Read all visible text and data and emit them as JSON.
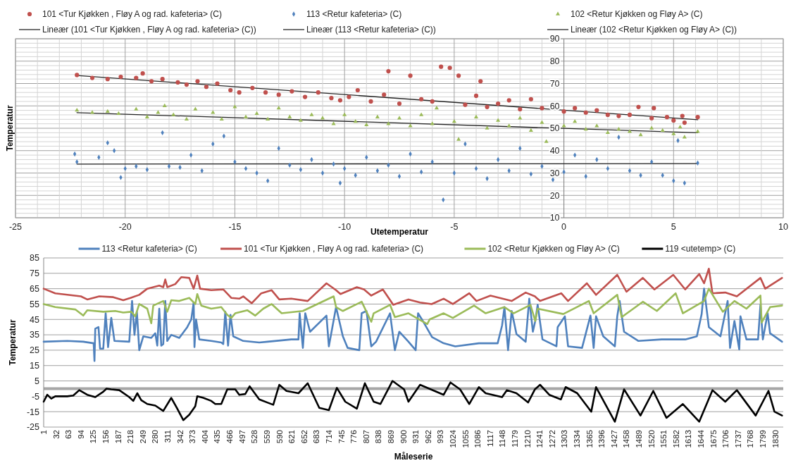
{
  "chart_data": [
    {
      "type": "scatter",
      "xlabel": "Utetemperatur",
      "ylabel": "Temperatur",
      "xlim": [
        -25,
        10
      ],
      "ylim": [
        10,
        90
      ],
      "grid": true,
      "legend": "top",
      "xticks": [
        -25,
        {
          "value": -24,
          "label": null
        },
        {
          "value": -23,
          "label": null
        },
        {
          "value": -22,
          "label": null
        },
        {
          "value": -21,
          "label": null
        },
        -20,
        {
          "value": -19,
          "label": null
        },
        {
          "value": -18,
          "label": null
        },
        {
          "value": -17,
          "label": null
        },
        {
          "value": -16,
          "label": null
        },
        -15,
        {
          "value": -14,
          "label": null
        },
        {
          "value": -13,
          "label": null
        },
        {
          "value": -12,
          "label": null
        },
        {
          "value": -11,
          "label": null
        },
        -10,
        {
          "value": -9,
          "label": null
        },
        {
          "value": -8,
          "label": null
        },
        {
          "value": -7,
          "label": null
        },
        {
          "value": -6,
          "label": null
        },
        -5,
        {
          "value": -4,
          "label": null
        },
        {
          "value": -3,
          "label": null
        },
        {
          "value": -2,
          "label": null
        },
        {
          "value": -1,
          "label": null
        },
        0,
        {
          "value": 1,
          "label": null
        },
        {
          "value": 2,
          "label": null
        },
        {
          "value": 3,
          "label": null
        },
        {
          "value": 4,
          "label": null
        },
        5,
        {
          "value": 6,
          "label": null
        },
        {
          "value": 7,
          "label": null
        },
        {
          "value": 8,
          "label": null
        },
        {
          "value": 9,
          "label": null
        },
        10
      ],
      "yticks": [
        10,
        {
          "value": 12,
          "label": null
        },
        {
          "value": 14,
          "label": null
        },
        {
          "value": 16,
          "label": null
        },
        {
          "value": 18,
          "label": null
        },
        20,
        {
          "value": 22,
          "label": null
        },
        {
          "value": 24,
          "label": null
        },
        {
          "value": 26,
          "label": null
        },
        {
          "value": 28,
          "label": null
        },
        30,
        {
          "value": 32,
          "label": null
        },
        {
          "value": 34,
          "label": null
        },
        {
          "value": 36,
          "label": null
        },
        {
          "value": 38,
          "label": null
        },
        40,
        {
          "value": 42,
          "label": null
        },
        {
          "value": 44,
          "label": null
        },
        {
          "value": 46,
          "label": null
        },
        {
          "value": 48,
          "label": null
        },
        50,
        {
          "value": 52,
          "label": null
        },
        {
          "value": 54,
          "label": null
        },
        {
          "value": 56,
          "label": null
        },
        {
          "value": 58,
          "label": null
        },
        60,
        {
          "value": 62,
          "label": null
        },
        {
          "value": 64,
          "label": null
        },
        {
          "value": 66,
          "label": null
        },
        {
          "value": 68,
          "label": null
        },
        70,
        {
          "value": 72,
          "label": null
        },
        {
          "value": 74,
          "label": null
        },
        {
          "value": 76,
          "label": null
        },
        {
          "value": 78,
          "label": null
        },
        80,
        {
          "value": 82,
          "label": null
        },
        {
          "value": 84,
          "label": null
        },
        {
          "value": 86,
          "label": null
        },
        {
          "value": 88,
          "label": null
        },
        90
      ],
      "series": [
        {
          "name": "101 <Tur Kjøkken , Fløy A og rad. kafeteria> (C)",
          "type": "scatter",
          "marker": "circle",
          "color": "#c0504d",
          "x": [
            -22.2,
            -21.5,
            -20.8,
            -20.2,
            -19.5,
            -19.2,
            -18.8,
            -18.3,
            -17.6,
            -17.2,
            -16.7,
            -16.3,
            -15.8,
            -15.2,
            -14.8,
            -14.2,
            -13.6,
            -13,
            -12.4,
            -11.8,
            -11.2,
            -10.6,
            -10.2,
            -9.8,
            -9.4,
            -8.8,
            -8.2,
            -8,
            -7.5,
            -7,
            -6.5,
            -6,
            -5.6,
            -5.2,
            -4.8,
            -4.5,
            -4,
            -3.8,
            -3.5,
            -3,
            -2.5,
            -2,
            -1.5,
            -1,
            0,
            0.5,
            1,
            1.5,
            2,
            2.5,
            3,
            3.4,
            4,
            4.1,
            4.7,
            5,
            5.4,
            5.5,
            6.1
          ],
          "values": [
            73.8,
            72.5,
            72,
            73,
            72.5,
            74.5,
            71,
            72,
            70.5,
            69.5,
            71,
            68.5,
            70,
            67,
            66,
            68,
            66,
            65,
            66.5,
            64,
            66,
            63.5,
            62.5,
            64,
            67,
            62,
            65,
            75.5,
            61,
            73.5,
            63,
            62,
            77.5,
            77,
            73.5,
            60.5,
            64.5,
            71,
            59.5,
            61,
            62.5,
            58.5,
            63,
            59,
            57.5,
            59,
            57,
            58,
            56,
            55.5,
            56,
            59.5,
            54.5,
            59,
            55,
            53.5,
            55.5,
            52.5,
            55
          ]
        },
        {
          "name": "113 <Retur kafeteria> (C)",
          "type": "scatter",
          "marker": "diamond",
          "color": "#4f81bd",
          "x": [
            -22.3,
            -22.2,
            -21.2,
            -20.8,
            -20.5,
            -20.2,
            -20,
            -19.5,
            -19,
            -18.3,
            -18,
            -17.5,
            -17,
            -16.5,
            -16,
            -15.5,
            -15,
            -14.5,
            -14,
            -13.5,
            -13,
            -12.5,
            -12,
            -11.5,
            -11,
            -10.5,
            -10.2,
            -10,
            -9.5,
            -9,
            -8.5,
            -8,
            -7.5,
            -7,
            -6.5,
            -6,
            -5.5,
            -5,
            -4.5,
            -4,
            -3.5,
            -3,
            -2.5,
            -2,
            -1.5,
            -1,
            -0.5,
            0,
            0.5,
            1,
            1.5,
            2,
            2.5,
            3,
            3.5,
            4,
            4.5,
            5,
            5.2,
            5.5,
            6.1
          ],
          "values": [
            38.5,
            35,
            37,
            43.5,
            40,
            28,
            32,
            33,
            31.5,
            48,
            33,
            32.5,
            38,
            31,
            43,
            46.5,
            35,
            32,
            30,
            26.5,
            41,
            33.5,
            31.5,
            36,
            30,
            34,
            25.5,
            32,
            29,
            37,
            31,
            33.5,
            28.5,
            38.5,
            30.5,
            35,
            18,
            30,
            43,
            32,
            27.5,
            36,
            31,
            41,
            29.5,
            33,
            27,
            30.5,
            38,
            28.5,
            36,
            32,
            46,
            31,
            29,
            35,
            29,
            26.5,
            44.5,
            25.5,
            34.5
          ]
        },
        {
          "name": "102 <Retur Kjøkken og Fløy A> (C)",
          "type": "scatter",
          "marker": "triangle",
          "color": "#9bbb59",
          "x": [
            -22.2,
            -21.5,
            -20.8,
            -20.3,
            -19.5,
            -19,
            -18.5,
            -18.2,
            -17.8,
            -17.2,
            -16.8,
            -16,
            -15.6,
            -15,
            -14.5,
            -14,
            -13.5,
            -13,
            -12.5,
            -12,
            -11.5,
            -11,
            -10.5,
            -10,
            -9.5,
            -9,
            -8.5,
            -8,
            -7.5,
            -7,
            -6.5,
            -6,
            -5.8,
            -5,
            -4.8,
            -4,
            -3.5,
            -3,
            -2.5,
            -2,
            -1.5,
            -1,
            -0.8,
            0,
            0.5,
            1,
            1.5,
            2,
            2.5,
            3,
            3.5,
            4,
            4.5,
            5,
            5.3,
            5.5,
            6.1
          ],
          "values": [
            58,
            57,
            57.5,
            56.5,
            58.5,
            55,
            57,
            60,
            56,
            54,
            58.5,
            57,
            54,
            59.5,
            55,
            56.5,
            54,
            59,
            55,
            53.5,
            56,
            54.5,
            52,
            56,
            53,
            51.5,
            55,
            52,
            54.5,
            51,
            56,
            52,
            59,
            53,
            45,
            55,
            50,
            53.5,
            51,
            54.5,
            49,
            52.5,
            44,
            51,
            53,
            49.5,
            51,
            48,
            49.5,
            48.5,
            47,
            50,
            49,
            47.5,
            50.5,
            46,
            48.5
          ]
        },
        {
          "name": "Lineær (101 <Tur Kjøkken , Fløy A og rad. kafeteria> (C))",
          "type": "line",
          "color": "#262626",
          "x": [
            -22.2,
            6.1
          ],
          "values": [
            73.6,
            53.8
          ]
        },
        {
          "name": "Lineær (113 <Retur kafeteria> (C))",
          "type": "line",
          "color": "#262626",
          "x": [
            -22.2,
            6.1
          ],
          "values": [
            34,
            34.2
          ]
        },
        {
          "name": "Lineær (102 <Retur Kjøkken og Fløy A> (C))",
          "type": "line",
          "color": "#262626",
          "x": [
            -22.2,
            6.1
          ],
          "values": [
            57,
            48
          ]
        }
      ]
    },
    {
      "type": "line",
      "xlabel": "Måleserie",
      "ylabel": "Temperatur",
      "xlim": [
        1,
        1850
      ],
      "ylim": [
        -25,
        85
      ],
      "grid": "y",
      "legend": "top",
      "xticks": [
        1,
        32,
        63,
        94,
        125,
        156,
        187,
        218,
        249,
        280,
        311,
        342,
        373,
        404,
        435,
        466,
        497,
        528,
        559,
        590,
        621,
        652,
        683,
        714,
        745,
        776,
        807,
        838,
        869,
        900,
        931,
        962,
        993,
        1024,
        1055,
        1086,
        1117,
        1148,
        1179,
        1210,
        1241,
        1272,
        1303,
        1334,
        1365,
        1396,
        1427,
        1458,
        1489,
        1520,
        1551,
        1582,
        1613,
        1644,
        1675,
        1706,
        1737,
        1768,
        1799,
        1830
      ],
      "yticks": [
        -25,
        -15,
        -5,
        5,
        15,
        25,
        35,
        45,
        55,
        65,
        75,
        85
      ],
      "ref_lines": [
        {
          "axis": "y",
          "value": 0,
          "color": "#a6a6a6"
        }
      ],
      "series": [
        {
          "name": "113 <Retur kafeteria> (C)",
          "color": "#4f81bd",
          "x": [
            1,
            60,
            100,
            126,
            128,
            130,
            138,
            142,
            150,
            156,
            162,
            170,
            178,
            215,
            222,
            228,
            234,
            240,
            250,
            270,
            280,
            285,
            290,
            295,
            300,
            305,
            310,
            320,
            340,
            360,
            370,
            376,
            378,
            382,
            390,
            420,
            445,
            450,
            455,
            462,
            468,
            475,
            500,
            540,
            561,
            620,
            638,
            641,
            649,
            655,
            667,
            708,
            714,
            732,
            749,
            761,
            790,
            796,
            808,
            820,
            832,
            867,
            879,
            890,
            913,
            931,
            937,
            949,
            972,
            1001,
            1030,
            1089,
            1136,
            1147,
            1153,
            1162,
            1171,
            1183,
            1206,
            1215,
            1224,
            1230,
            1236,
            1248,
            1283,
            1286,
            1304,
            1312,
            1347,
            1368,
            1376,
            1382,
            1400,
            1429,
            1435,
            1441,
            1452,
            1488,
            1546,
            1605,
            1634,
            1646,
            1652,
            1664,
            1693,
            1711,
            1717,
            1728,
            1740,
            1743,
            1758,
            1787,
            1793,
            1799,
            1811,
            1817,
            1847
          ],
          "values": [
            30.5,
            31,
            30.5,
            29.5,
            18,
            39,
            40,
            26,
            26,
            49,
            27,
            46,
            31,
            30.5,
            57,
            35,
            50,
            25,
            34,
            33,
            36,
            28,
            52,
            28,
            29,
            57,
            31,
            35,
            33,
            40,
            45,
            56,
            27,
            45,
            32,
            31,
            30,
            29,
            50,
            28,
            48,
            34,
            31,
            30,
            30.5,
            32,
            32,
            49,
            26.5,
            49,
            37,
            47.5,
            27.5,
            53,
            34,
            26.5,
            25,
            49,
            50.5,
            27.5,
            30.5,
            49,
            25,
            37,
            30.5,
            25,
            49,
            44,
            33.5,
            29.5,
            27.5,
            29.5,
            29.5,
            41,
            53,
            25,
            50.5,
            35.5,
            30.5,
            58.5,
            37,
            44,
            54.5,
            32,
            27.5,
            40,
            47,
            27.5,
            26.5,
            47.5,
            26.5,
            47,
            34,
            27.5,
            47,
            57,
            37,
            31,
            32,
            32,
            34,
            48.5,
            65,
            40,
            34,
            57,
            26.5,
            44,
            25.5,
            47,
            32,
            32,
            54.5,
            32,
            49,
            36,
            30.5
          ]
        },
        {
          "name": "101 <Tur Kjøkken , Fløy A og rad. kafeteria> (C)",
          "color": "#c0504d",
          "x": [
            1,
            30,
            94,
            110,
            140,
            175,
            200,
            218,
            240,
            260,
            290,
            300,
            305,
            310,
            330,
            345,
            365,
            376,
            385,
            392,
            420,
            450,
            470,
            490,
            500,
            521,
            545,
            571,
            590,
            620,
            661,
            708,
            732,
            743,
            784,
            802,
            820,
            849,
            875,
            913,
            942,
            971,
            1001,
            1024,
            1065,
            1083,
            1118,
            1171,
            1206,
            1229,
            1242,
            1295,
            1312,
            1359,
            1382,
            1435,
            1458,
            1499,
            1528,
            1575,
            1605,
            1640,
            1652,
            1664,
            1673,
            1705,
            1734,
            1793,
            1805,
            1847
          ],
          "values": [
            65,
            62,
            60,
            58,
            60,
            59.5,
            57.5,
            59,
            61,
            65,
            67,
            66,
            71,
            66,
            68,
            72.5,
            72,
            65,
            73.5,
            65,
            64,
            64.5,
            59,
            58.5,
            60,
            55.5,
            62,
            64,
            58,
            58.5,
            57,
            68.5,
            64,
            61.5,
            66,
            64.5,
            60.5,
            64.5,
            54.5,
            58,
            56,
            55,
            58.5,
            55,
            62,
            57,
            60.5,
            57,
            62.5,
            60,
            57,
            62,
            57,
            68.5,
            61,
            74,
            63,
            72,
            64.5,
            74,
            64.5,
            74.5,
            68.5,
            78,
            62,
            62.5,
            60,
            72,
            65,
            72
          ]
        },
        {
          "name": "102 <Retur Kjøkken og Fløy A> (C)",
          "color": "#9bbb59",
          "x": [
            1,
            30,
            80,
            100,
            110,
            150,
            180,
            200,
            220,
            230,
            240,
            260,
            270,
            275,
            300,
            310,
            320,
            340,
            365,
            380,
            385,
            395,
            420,
            445,
            460,
            470,
            480,
            510,
            530,
            550,
            571,
            596,
            649,
            726,
            732,
            749,
            796,
            820,
            826,
            867,
            879,
            913,
            960,
            966,
            1001,
            1024,
            1077,
            1106,
            1153,
            1176,
            1218,
            1230,
            1236,
            1300,
            1364,
            1376,
            1435,
            1446,
            1499,
            1534,
            1581,
            1599,
            1652,
            1664,
            1699,
            1728,
            1758,
            1793,
            1796,
            1817,
            1847
          ],
          "values": [
            55,
            53,
            51.5,
            47.5,
            51,
            50,
            50.5,
            49.5,
            50,
            47,
            55,
            52,
            42.5,
            54,
            57,
            50,
            57.5,
            57,
            59,
            55,
            61.5,
            54,
            52,
            53,
            48,
            46,
            49,
            51,
            47.5,
            52,
            55,
            49,
            50.5,
            60,
            53,
            50.5,
            56.5,
            43.5,
            49,
            54.5,
            46.5,
            49,
            42,
            45,
            49,
            46,
            54,
            49,
            53,
            49,
            54.5,
            44,
            52,
            48.5,
            57,
            49,
            61,
            46.5,
            56.5,
            50.5,
            62,
            49,
            57,
            65,
            50,
            57,
            52,
            60.5,
            43,
            53,
            54
          ]
        },
        {
          "name": "119 <utetemp> (C)",
          "color": "#000000",
          "x": [
            1,
            10,
            20,
            30,
            60,
            75,
            90,
            110,
            130,
            150,
            158,
            170,
            190,
            215,
            225,
            235,
            245,
            260,
            280,
            300,
            320,
            335,
            350,
            365,
            380,
            385,
            400,
            420,
            430,
            445,
            460,
            480,
            490,
            505,
            516,
            540,
            560,
            575,
            590,
            608,
            638,
            661,
            690,
            714,
            734,
            755,
            784,
            804,
            826,
            843,
            873,
            902,
            913,
            942,
            1001,
            1018,
            1042,
            1065,
            1089,
            1106,
            1147,
            1159,
            1183,
            1212,
            1229,
            1242,
            1265,
            1294,
            1306,
            1335,
            1370,
            1382,
            1429,
            1452,
            1493,
            1525,
            1558,
            1599,
            1640,
            1673,
            1705,
            1734,
            1781,
            1813,
            1828,
            1847
          ],
          "values": [
            -8.5,
            -4,
            -6.5,
            -5,
            -5,
            -4.5,
            -1,
            -4,
            -5.5,
            -2,
            0,
            -0.5,
            -1,
            -5.5,
            -8,
            -3,
            -7.5,
            -10,
            -11,
            -14.5,
            -6,
            -13,
            -20.5,
            -17,
            -11.5,
            -5,
            -6,
            -8,
            -10,
            -10,
            -0.5,
            -0.5,
            -4,
            -3.5,
            1.5,
            -7,
            -9,
            -10.5,
            2.5,
            -1.5,
            -3,
            3.5,
            -12.5,
            -14,
            0.5,
            -8.5,
            -13,
            3.5,
            -8.5,
            -10,
            5,
            -0.5,
            -8.5,
            2.5,
            -4,
            4,
            -0.5,
            -10,
            1,
            -3,
            -5.5,
            -1,
            -3,
            -9,
            -0.5,
            2.5,
            -4,
            -7,
            1,
            -3,
            -15,
            1,
            -21.5,
            -0.5,
            -17.5,
            -1.5,
            -19,
            -10,
            -21.5,
            -1,
            -8.5,
            -1,
            -17.5,
            -1.5,
            -15,
            -17.5
          ]
        }
      ]
    }
  ]
}
